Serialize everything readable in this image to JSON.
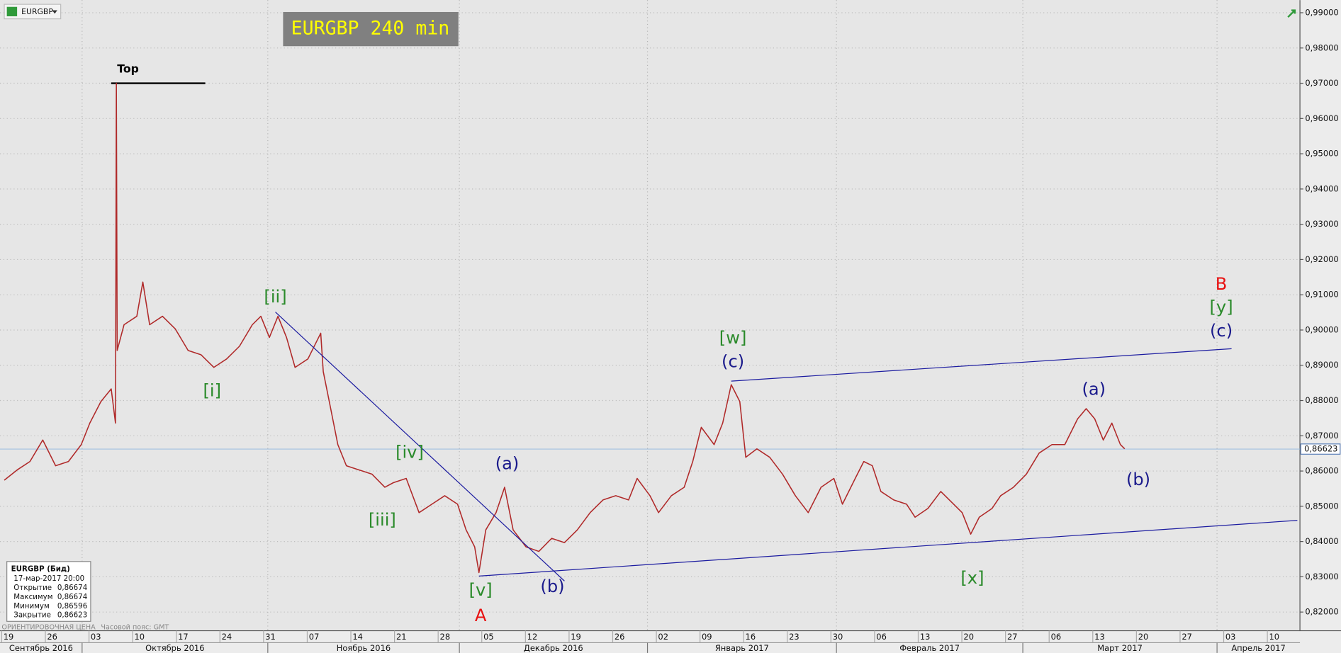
{
  "chart_data": {
    "type": "line",
    "title": "EURGBP 240 min",
    "symbol": "EURGBP",
    "color": "#b02a2a",
    "grid": true,
    "x": [
      -0.098,
      0.196,
      0.49,
      0.784,
      1.078,
      1.372,
      1.666,
      1.862,
      2.116,
      2.352,
      2.45,
      2.47,
      2.489,
      2.646,
      2.939,
      3.077,
      3.233,
      3.527,
      3.821,
      4.115,
      4.409,
      4.703,
      4.997,
      5.291,
      5.585,
      5.781,
      5.977,
      6.173,
      6.369,
      6.565,
      6.859,
      7.153,
      7.211,
      7.349,
      7.545,
      7.741,
      8.035,
      8.328,
      8.622,
      8.818,
      9.112,
      9.406,
      9.7,
      9.994,
      10.288,
      10.484,
      10.68,
      10.778,
      10.935,
      11.17,
      11.366,
      11.562,
      11.856,
      12.15,
      12.444,
      12.738,
      13.032,
      13.326,
      13.62,
      13.913,
      14.207,
      14.403,
      14.697,
      14.893,
      15.187,
      15.481,
      15.677,
      15.873,
      16.167,
      16.363,
      16.559,
      16.755,
      16.892,
      17.147,
      17.441,
      17.735,
      18.029,
      18.323,
      18.617,
      18.911,
      19.107,
      19.4,
      19.596,
      19.792,
      19.988,
      20.282,
      20.576,
      20.772,
      21.066,
      21.36,
      21.654,
      21.85,
      22.046,
      22.242,
      22.536,
      22.732,
      23.026,
      23.32,
      23.614,
      23.908,
      24.202,
      24.496,
      24.692,
      24.888,
      25.084,
      25.28,
      25.476,
      25.574
    ],
    "values": [
      0.8574,
      0.8603,
      0.8627,
      0.8688,
      0.8615,
      0.8627,
      0.8675,
      0.8736,
      0.8797,
      0.8833,
      0.8736,
      0.97,
      0.8942,
      0.9015,
      0.9039,
      0.9136,
      0.9015,
      0.9039,
      0.9003,
      0.8942,
      0.893,
      0.8894,
      0.8918,
      0.8954,
      0.9015,
      0.9039,
      0.8979,
      0.9039,
      0.8979,
      0.8894,
      0.8918,
      0.8991,
      0.8882,
      0.8797,
      0.8675,
      0.8615,
      0.8603,
      0.8591,
      0.8554,
      0.8567,
      0.8579,
      0.8482,
      0.8506,
      0.853,
      0.8506,
      0.8433,
      0.8385,
      0.8312,
      0.8433,
      0.8482,
      0.8554,
      0.8433,
      0.8385,
      0.8372,
      0.8409,
      0.8397,
      0.8433,
      0.8482,
      0.8518,
      0.853,
      0.8518,
      0.8579,
      0.853,
      0.8482,
      0.853,
      0.8554,
      0.8627,
      0.8724,
      0.8675,
      0.8736,
      0.8845,
      0.8797,
      0.8639,
      0.8663,
      0.8639,
      0.8591,
      0.853,
      0.8482,
      0.8554,
      0.8579,
      0.8506,
      0.8579,
      0.8627,
      0.8615,
      0.8542,
      0.8518,
      0.8506,
      0.8469,
      0.8494,
      0.8542,
      0.8506,
      0.8482,
      0.8421,
      0.8469,
      0.8494,
      0.853,
      0.8554,
      0.8591,
      0.8651,
      0.8675,
      0.8675,
      0.8748,
      0.8777,
      0.8748,
      0.8688,
      0.8736,
      0.8675,
      0.8663
    ],
    "xlim": [
      -0.196,
      29.59
    ],
    "ylim": [
      0.8147,
      0.9936
    ],
    "xticks": [
      {
        "value": 0,
        "label": "19"
      },
      {
        "value": 1,
        "label": "26"
      },
      {
        "value": 2,
        "label": "03"
      },
      {
        "value": 3,
        "label": "10"
      },
      {
        "value": 4,
        "label": "17"
      },
      {
        "value": 5,
        "label": "24"
      },
      {
        "value": 6,
        "label": "31"
      },
      {
        "value": 7,
        "label": "07"
      },
      {
        "value": 8,
        "label": "14"
      },
      {
        "value": 9,
        "label": "21"
      },
      {
        "value": 10,
        "label": "28"
      },
      {
        "value": 11,
        "label": "05"
      },
      {
        "value": 12,
        "label": "12"
      },
      {
        "value": 13,
        "label": "19"
      },
      {
        "value": 14,
        "label": "26"
      },
      {
        "value": 15,
        "label": "02"
      },
      {
        "value": 16,
        "label": "09"
      },
      {
        "value": 17,
        "label": "16"
      },
      {
        "value": 18,
        "label": "23"
      },
      {
        "value": 19,
        "label": "30"
      },
      {
        "value": 20,
        "label": "06"
      },
      {
        "value": 21,
        "label": "13"
      },
      {
        "value": 22,
        "label": "20"
      },
      {
        "value": 23,
        "label": "27"
      },
      {
        "value": 24,
        "label": "06"
      },
      {
        "value": 25,
        "label": "13"
      },
      {
        "value": 26,
        "label": "20"
      },
      {
        "value": 27,
        "label": "27"
      },
      {
        "value": 28,
        "label": "03"
      },
      {
        "value": 29,
        "label": "10"
      }
    ],
    "yticks": [
      {
        "value": 0.82,
        "label": "0,82000"
      },
      {
        "value": 0.83,
        "label": "0,83000"
      },
      {
        "value": 0.84,
        "label": "0,84000"
      },
      {
        "value": 0.85,
        "label": "0,85000"
      },
      {
        "value": 0.86,
        "label": "0,86000"
      },
      {
        "value": 0.87,
        "label": "0,87000"
      },
      {
        "value": 0.88,
        "label": "0,88000"
      },
      {
        "value": 0.89,
        "label": "0,89000"
      },
      {
        "value": 0.9,
        "label": "0,90000"
      },
      {
        "value": 0.91,
        "label": "0,91000"
      },
      {
        "value": 0.92,
        "label": "0,92000"
      },
      {
        "value": 0.93,
        "label": "0,93000"
      },
      {
        "value": 0.94,
        "label": "0,94000"
      },
      {
        "value": 0.95,
        "label": "0,95000"
      },
      {
        "value": 0.96,
        "label": "0,96000"
      },
      {
        "value": 0.97,
        "label": "0,97000"
      },
      {
        "value": 0.98,
        "label": "0,98000"
      },
      {
        "value": 0.99,
        "label": "0,99000"
      }
    ],
    "months": [
      {
        "label": "Сентябрь 2016",
        "start": -2.57
      },
      {
        "label": "Октябрь 2016",
        "start": 1.685
      },
      {
        "label": "Ноябрь 2016",
        "start": 5.94
      },
      {
        "label": "Декабрь 2016",
        "start": 10.33
      },
      {
        "label": "Январь 2017",
        "start": 14.64
      },
      {
        "label": "Февраль 2017",
        "start": 18.97
      },
      {
        "label": "Март 2017",
        "start": 23.24
      },
      {
        "label": "Апрель 2017",
        "start": 27.69
      }
    ],
    "current_price": {
      "value": 0.86623,
      "label": "0,86623"
    },
    "top_level": {
      "value": 0.97,
      "label": "Top"
    },
    "trendlines": [
      {
        "x": [
          6.114,
          12.738
        ],
        "y": [
          0.9051,
          0.8288
        ],
        "color": "#1c1ca0"
      },
      {
        "x": [
          10.778,
          29.53
        ],
        "y": [
          0.8302,
          0.846
        ],
        "color": "#1c1ca0"
      },
      {
        "x": [
          16.559,
          28.023
        ],
        "y": [
          0.8855,
          0.8947
        ],
        "color": "#1c1ca0"
      }
    ],
    "annotations": [
      {
        "text": "[i]",
        "color": "#2a8a2a"
      },
      {
        "text": "[ii]",
        "color": "#2a8a2a"
      },
      {
        "text": "[iii]",
        "color": "#2a8a2a"
      },
      {
        "text": "[iv]",
        "color": "#2a8a2a"
      },
      {
        "text": "[v]",
        "color": "#2a8a2a"
      },
      {
        "text": "A",
        "color": "#e81010"
      },
      {
        "text": "(a)",
        "color": "#1a1a8c"
      },
      {
        "text": "(b)",
        "color": "#1a1a8c"
      },
      {
        "text": "[w]",
        "color": "#2a8a2a"
      },
      {
        "text": "(c)",
        "color": "#1a1a8c"
      },
      {
        "text": "[x]",
        "color": "#2a8a2a"
      },
      {
        "text": "(a)",
        "color": "#1a1a8c"
      },
      {
        "text": "(b)",
        "color": "#1a1a8c"
      },
      {
        "text": "B",
        "color": "#e81010"
      },
      {
        "text": "[y]",
        "color": "#2a8a2a"
      },
      {
        "text": "(c)",
        "color": "#1a1a8c"
      }
    ],
    "info_box": {
      "title": "EURGBP (Бид)",
      "time": "17-мар-2017 20:00",
      "rows": [
        [
          "Открытие",
          "0,86674"
        ],
        [
          "Максимум",
          "0,86674"
        ],
        [
          "Минимум",
          "0,86596"
        ],
        [
          "Закрытие",
          "0,86623"
        ]
      ]
    },
    "footer": [
      "ОРИЕНТИРОВОЧНАЯ ЦЕНА",
      "Часовой пояс: GMT"
    ]
  }
}
